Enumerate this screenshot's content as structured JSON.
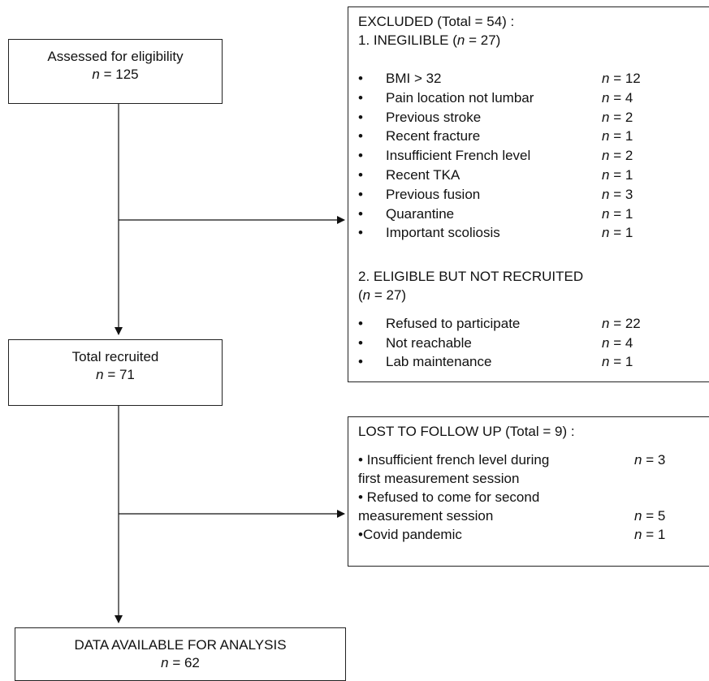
{
  "assessed": {
    "label": "Assessed for eligibility",
    "n_prefix": "n",
    "n_value": "= 125"
  },
  "recruited": {
    "label": "Total recruited",
    "n_prefix": "n",
    "n_value": "= 71"
  },
  "analysis": {
    "label": "DATA AVAILABLE FOR ANALYSIS",
    "n_prefix": "n",
    "n_value": "= 62"
  },
  "excluded": {
    "title": "EXCLUDED (Total = 54) :",
    "ineligible_heading_a": "1. INEGILIBLE (",
    "ineligible_heading_n": "n",
    "ineligible_heading_b": " = 27)",
    "ineligible_items": [
      {
        "bullet": "•",
        "label": "BMI > 32",
        "n_prefix": "n",
        "n_value": "= 12"
      },
      {
        "bullet": "•",
        "label": "Pain location not lumbar",
        "n_prefix": "n",
        "n_value": "= 4"
      },
      {
        "bullet": "•",
        "label": "Previous stroke",
        "n_prefix": "n",
        "n_value": "= 2"
      },
      {
        "bullet": "•",
        "label": "Recent fracture",
        "n_prefix": "n",
        "n_value": "= 1"
      },
      {
        "bullet": "•",
        "label": "Insufficient French level",
        "n_prefix": "n",
        "n_value": "= 2"
      },
      {
        "bullet": "•",
        "label": "Recent TKA",
        "n_prefix": "n",
        "n_value": "= 1"
      },
      {
        "bullet": "•",
        "label": "Previous fusion",
        "n_prefix": "n",
        "n_value": "= 3"
      },
      {
        "bullet": "•",
        "label": "Quarantine",
        "n_prefix": "n",
        "n_value": "= 1"
      },
      {
        "bullet": "•",
        "label": "Important scoliosis",
        "n_prefix": "n",
        "n_value": "= 1"
      }
    ],
    "eligible_heading_line1": "2. ELIGIBLE BUT NOT RECRUITED",
    "eligible_heading_line2_a": "(",
    "eligible_heading_line2_n": "n",
    "eligible_heading_line2_b": " = 27)",
    "eligible_items": [
      {
        "bullet": "•",
        "label": "Refused to participate",
        "n_prefix": "n",
        "n_value": "= 22"
      },
      {
        "bullet": "•",
        "label": "Not reachable",
        "n_prefix": "n",
        "n_value": "= 4"
      },
      {
        "bullet": "•",
        "label": "Lab maintenance",
        "n_prefix": "n",
        "n_value": "= 1"
      }
    ]
  },
  "lost": {
    "title": "LOST TO FOLLOW UP (Total = 9) :",
    "line1": "• Insufficient french level during",
    "line1_n_prefix": "n",
    "line1_n_value": "= 3",
    "line2": "first measurement session",
    "line3": "• Refused to come for second",
    "line4": "measurement session",
    "line4_n_prefix": "n",
    "line4_n_value": "= 5",
    "line5": "•Covid pandemic",
    "line5_n_prefix": "n",
    "line5_n_value": "= 1"
  }
}
